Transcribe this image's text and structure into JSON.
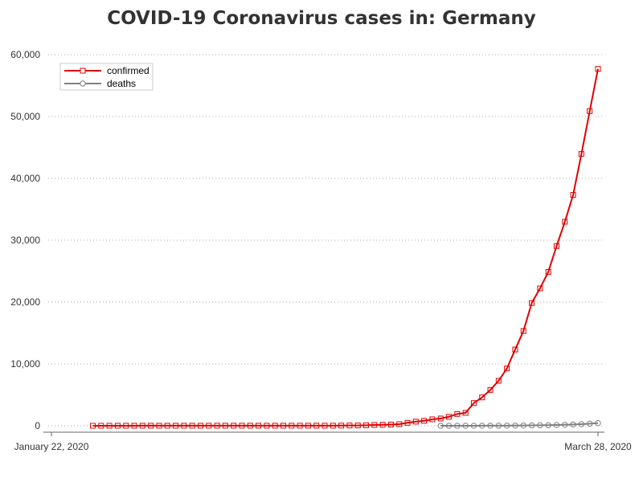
{
  "chart_data": {
    "type": "line",
    "title": "COVID-19 Coronavirus cases in: Germany",
    "xlabel": "",
    "ylabel": "",
    "x_tick_labels": [
      "January 22, 2020",
      "March 28, 2020"
    ],
    "x_range": [
      "2020-01-22",
      "2020-03-28"
    ],
    "ylim": [
      0,
      60000
    ],
    "y_ticks": [
      0,
      10000,
      20000,
      30000,
      40000,
      50000,
      60000
    ],
    "y_tick_labels": [
      "0",
      "10,000",
      "20,000",
      "30,000",
      "40,000",
      "50,000",
      "60,000"
    ],
    "grid": "horizontal dotted",
    "legend_position": "top-left",
    "series": [
      {
        "name": "confirmed",
        "color": "#e00000",
        "marker": "square",
        "x": [
          "2020-01-27",
          "2020-01-28",
          "2020-01-29",
          "2020-01-30",
          "2020-01-31",
          "2020-02-01",
          "2020-02-02",
          "2020-02-03",
          "2020-02-04",
          "2020-02-05",
          "2020-02-06",
          "2020-02-07",
          "2020-02-08",
          "2020-02-09",
          "2020-02-10",
          "2020-02-11",
          "2020-02-12",
          "2020-02-13",
          "2020-02-14",
          "2020-02-15",
          "2020-02-16",
          "2020-02-17",
          "2020-02-18",
          "2020-02-19",
          "2020-02-20",
          "2020-02-21",
          "2020-02-22",
          "2020-02-23",
          "2020-02-24",
          "2020-02-25",
          "2020-02-26",
          "2020-02-27",
          "2020-02-28",
          "2020-02-29",
          "2020-03-01",
          "2020-03-02",
          "2020-03-03",
          "2020-03-04",
          "2020-03-05",
          "2020-03-06",
          "2020-03-07",
          "2020-03-08",
          "2020-03-09",
          "2020-03-10",
          "2020-03-11",
          "2020-03-12",
          "2020-03-13",
          "2020-03-14",
          "2020-03-15",
          "2020-03-16",
          "2020-03-17",
          "2020-03-18",
          "2020-03-19",
          "2020-03-20",
          "2020-03-21",
          "2020-03-22",
          "2020-03-23",
          "2020-03-24",
          "2020-03-25",
          "2020-03-26",
          "2020-03-27",
          "2020-03-28"
        ],
        "values": [
          1,
          4,
          4,
          4,
          5,
          8,
          10,
          12,
          12,
          12,
          12,
          13,
          13,
          14,
          14,
          16,
          16,
          16,
          16,
          16,
          16,
          16,
          16,
          16,
          16,
          16,
          16,
          16,
          16,
          17,
          27,
          46,
          48,
          79,
          130,
          159,
          196,
          262,
          482,
          670,
          799,
          1040,
          1176,
          1457,
          1908,
          2078,
          3675,
          4585,
          5795,
          7272,
          9257,
          12327,
          15320,
          19848,
          22213,
          24873,
          29056,
          32986,
          37323,
          43938,
          50871,
          57695
        ]
      },
      {
        "name": "deaths",
        "color": "#808080",
        "marker": "circle",
        "x": [
          "2020-03-09",
          "2020-03-10",
          "2020-03-11",
          "2020-03-12",
          "2020-03-13",
          "2020-03-14",
          "2020-03-15",
          "2020-03-16",
          "2020-03-17",
          "2020-03-18",
          "2020-03-19",
          "2020-03-20",
          "2020-03-21",
          "2020-03-22",
          "2020-03-23",
          "2020-03-24",
          "2020-03-25",
          "2020-03-26",
          "2020-03-27",
          "2020-03-28"
        ],
        "values": [
          2,
          2,
          3,
          3,
          7,
          9,
          11,
          17,
          24,
          28,
          44,
          67,
          84,
          94,
          123,
          157,
          206,
          267,
          342,
          433
        ]
      }
    ]
  }
}
